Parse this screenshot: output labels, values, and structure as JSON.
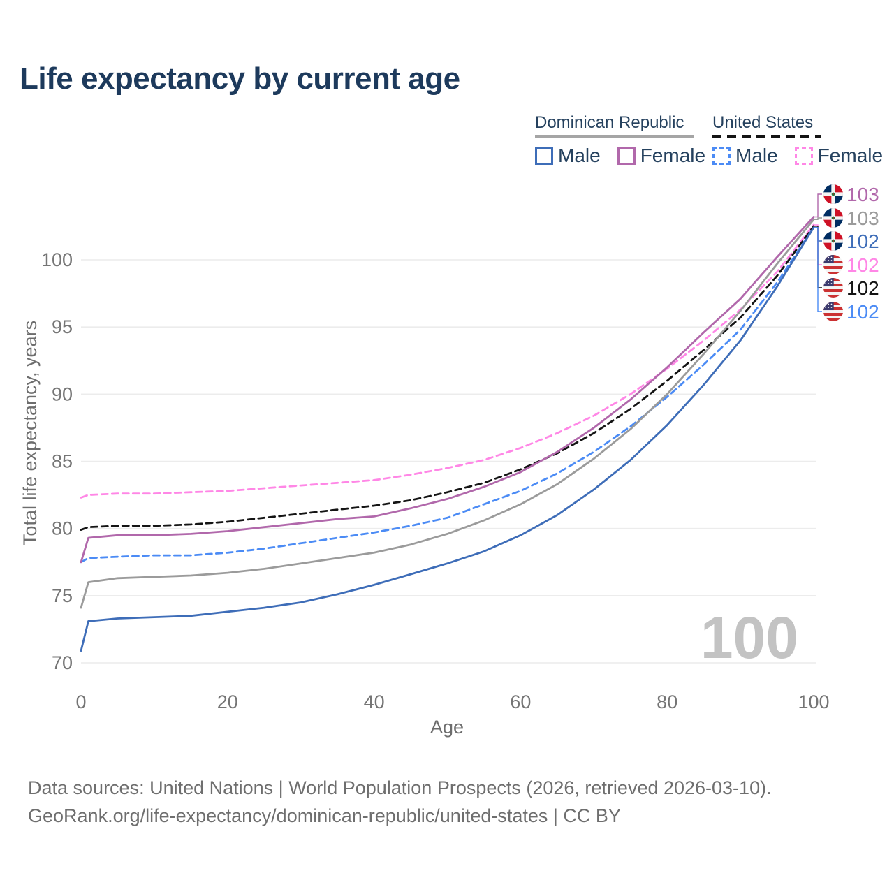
{
  "title": "Life expectancy by current age",
  "legend": {
    "groups": [
      {
        "label": "Dominican Republic",
        "line_style": "solid",
        "line_color": "#9b9b9b",
        "items": [
          {
            "label": "Male",
            "color": "#3e6db8",
            "style": "solid"
          },
          {
            "label": "Female",
            "color": "#b168ab",
            "style": "solid"
          }
        ]
      },
      {
        "label": "United States",
        "line_style": "dashed",
        "line_color": "#141414",
        "items": [
          {
            "label": "Male",
            "color": "#4b8bf5",
            "style": "dashed"
          },
          {
            "label": "Female",
            "color": "#ff87e6",
            "style": "dashed"
          }
        ]
      }
    ]
  },
  "axes": {
    "x": {
      "label": "Age",
      "ticks": [
        0,
        20,
        40,
        60,
        80,
        100
      ],
      "range": [
        0,
        100
      ]
    },
    "y": {
      "label": "Total life expectancy, years",
      "ticks": [
        70,
        75,
        80,
        85,
        90,
        95,
        100
      ],
      "range": [
        70,
        100
      ]
    }
  },
  "watermark": "100",
  "end_labels": [
    {
      "flag": "dominican-republic-flag",
      "value": "103",
      "color": "#b168ab",
      "series": "Dominican Republic Female",
      "series_index": 2
    },
    {
      "flag": "dominican-republic-flag",
      "value": "103",
      "color": "#9b9b9b",
      "series": "Dominican Republic Total",
      "series_index": 1
    },
    {
      "flag": "dominican-republic-flag",
      "value": "102",
      "color": "#3e6db8",
      "series": "Dominican Republic Male",
      "series_index": 0
    },
    {
      "flag": "united-states-flag",
      "value": "102",
      "color": "#ff87e6",
      "series": "United States Female",
      "series_index": 5
    },
    {
      "flag": "united-states-flag",
      "value": "102",
      "color": "#141414",
      "series": "United States Total",
      "series_index": 4
    },
    {
      "flag": "united-states-flag",
      "value": "102",
      "color": "#4b8bf5",
      "series": "United States Male",
      "series_index": 3
    }
  ],
  "footer": {
    "line1": "Data sources: United Nations | World Population Prospects (2026, retrieved 2026-03-10).",
    "line2": "GeoRank.org/life-expectancy/dominican-republic/united-states | CC BY"
  },
  "chart_data": {
    "type": "line",
    "title": "Life expectancy by current age",
    "xlabel": "Age",
    "ylabel": "Total life expectancy, years",
    "xlim": [
      0,
      100
    ],
    "ylim": [
      70,
      100
    ],
    "grid": "horizontal",
    "legend_position": "top-right",
    "x": [
      0,
      1,
      5,
      10,
      15,
      20,
      25,
      30,
      35,
      40,
      45,
      50,
      55,
      60,
      65,
      70,
      75,
      80,
      85,
      90,
      95,
      100
    ],
    "series": [
      {
        "name": "Dominican Republic Male",
        "country": "Dominican Republic",
        "sex": "Male",
        "color": "#3e6db8",
        "line": "solid",
        "values": [
          70.9,
          73.1,
          73.3,
          73.4,
          73.5,
          73.8,
          74.1,
          74.5,
          75.1,
          75.8,
          76.6,
          77.4,
          78.3,
          79.5,
          81.0,
          82.9,
          85.1,
          87.7,
          90.7,
          94.0,
          98.0,
          102.4
        ]
      },
      {
        "name": "Dominican Republic Total",
        "country": "Dominican Republic",
        "sex": "Both",
        "color": "#9b9b9b",
        "line": "solid",
        "values": [
          74.1,
          76.0,
          76.3,
          76.4,
          76.5,
          76.7,
          77.0,
          77.4,
          77.8,
          78.2,
          78.8,
          79.6,
          80.6,
          81.8,
          83.3,
          85.2,
          87.4,
          90.0,
          93.0,
          96.2,
          99.7,
          103.0
        ]
      },
      {
        "name": "Dominican Republic Female",
        "country": "Dominican Republic",
        "sex": "Female",
        "color": "#b168ab",
        "line": "solid",
        "values": [
          77.5,
          79.3,
          79.5,
          79.5,
          79.6,
          79.8,
          80.1,
          80.4,
          80.7,
          80.9,
          81.5,
          82.2,
          83.1,
          84.2,
          85.7,
          87.5,
          89.6,
          92.0,
          94.6,
          97.1,
          100.2,
          103.2
        ]
      },
      {
        "name": "United States Male",
        "country": "United States",
        "sex": "Male",
        "color": "#4b8bf5",
        "line": "dashed",
        "values": [
          77.5,
          77.8,
          77.9,
          78.0,
          78.0,
          78.2,
          78.5,
          78.9,
          79.3,
          79.7,
          80.2,
          80.8,
          81.8,
          82.8,
          84.1,
          85.7,
          87.6,
          89.8,
          92.2,
          94.8,
          98.3,
          102.4
        ]
      },
      {
        "name": "United States Total",
        "country": "United States",
        "sex": "Both",
        "color": "#141414",
        "line": "dashed",
        "values": [
          79.9,
          80.1,
          80.2,
          80.2,
          80.3,
          80.5,
          80.8,
          81.1,
          81.4,
          81.7,
          82.1,
          82.7,
          83.4,
          84.4,
          85.6,
          87.1,
          88.9,
          91.0,
          93.3,
          95.7,
          98.8,
          102.5
        ]
      },
      {
        "name": "United States Female",
        "country": "United States",
        "sex": "Female",
        "color": "#ff87e6",
        "line": "dashed",
        "values": [
          82.3,
          82.5,
          82.6,
          82.6,
          82.7,
          82.8,
          83.0,
          83.2,
          83.4,
          83.6,
          84.0,
          84.5,
          85.1,
          86.0,
          87.1,
          88.4,
          90.0,
          91.9,
          94.0,
          96.3,
          99.1,
          102.6
        ]
      }
    ]
  }
}
